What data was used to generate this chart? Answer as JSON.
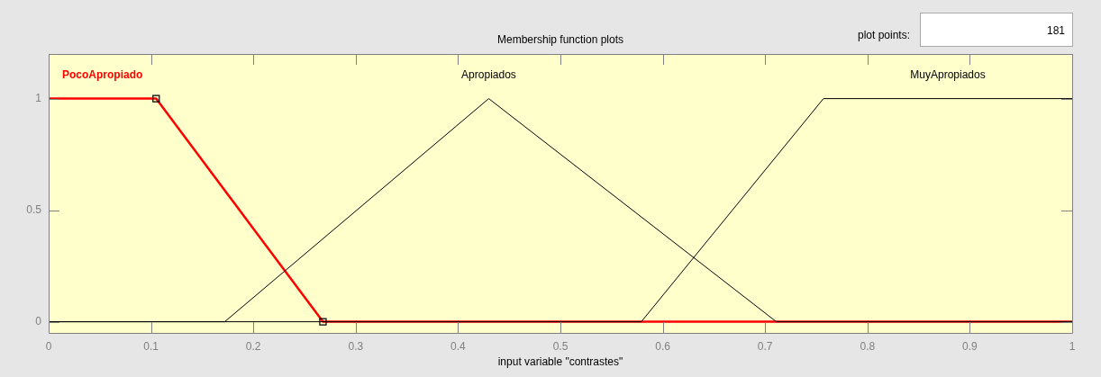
{
  "chart_data": {
    "type": "line",
    "title": "Membership function plots",
    "xlabel": "input variable \"contrastes\"",
    "xlim": [
      0,
      1
    ],
    "xticks": [
      0,
      0.1,
      0.2,
      0.3,
      0.4,
      0.5,
      0.6,
      0.7,
      0.8,
      0.9,
      1
    ],
    "ylim": [
      -0.05,
      1.2
    ],
    "yticks": [
      0,
      0.5,
      1
    ],
    "grid": false,
    "legend": false,
    "series": [
      {
        "name": "Apropiados",
        "color": "#000000",
        "x": [
          0,
          0.172,
          0.43,
          0.711,
          1
        ],
        "values": [
          0,
          0,
          1,
          0,
          0
        ]
      },
      {
        "name": "MuyApropiados",
        "color": "#000000",
        "x": [
          0,
          0.579,
          0.757,
          1
        ],
        "values": [
          0,
          0,
          1,
          1
        ]
      },
      {
        "name": "PocoApropiado",
        "color": "#ff0000",
        "x": [
          0,
          0.105,
          0.268,
          1
        ],
        "values": [
          1,
          1,
          0,
          0
        ],
        "marker": "square"
      }
    ],
    "annotations": [
      "plot points:",
      "181"
    ]
  }
}
